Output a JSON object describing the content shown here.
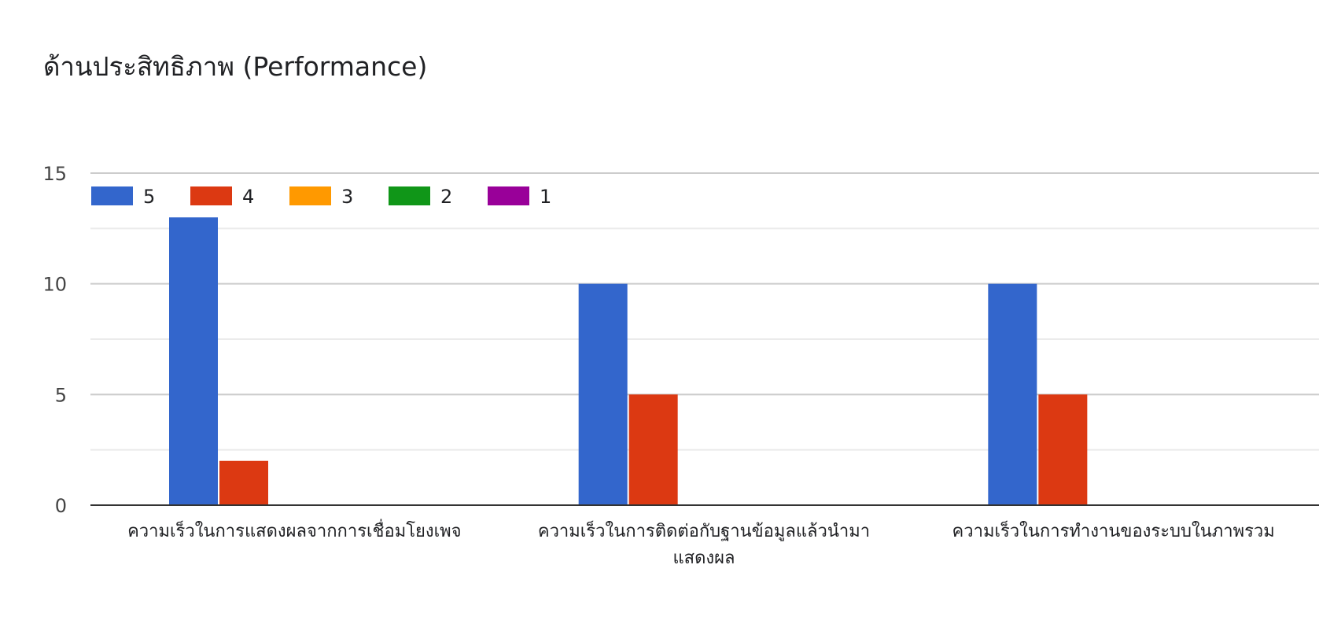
{
  "chart_data": {
    "type": "bar",
    "title": "ด้านประสิทธิภาพ (Performance)",
    "xlabel": "",
    "ylabel": "",
    "ylim": [
      0,
      15
    ],
    "yticks": [
      0,
      5,
      10,
      15
    ],
    "grid": true,
    "legend_position": "top-left",
    "categories": [
      [
        "ความเร็วในการแสดงผลจากการเชื่อมโยงเพจ"
      ],
      [
        "ความเร็วในการติดต่อกับฐานข้อมูลแล้วนำมา",
        "แสดงผล"
      ],
      [
        "ความเร็วในการทำงานของระบบในภาพรวม"
      ]
    ],
    "series": [
      {
        "name": "5",
        "color": "#3366cc",
        "values": [
          13,
          10,
          10
        ]
      },
      {
        "name": "4",
        "color": "#dc3912",
        "values": [
          2,
          5,
          5
        ]
      },
      {
        "name": "3",
        "color": "#ff9900",
        "values": [
          0,
          0,
          0
        ]
      },
      {
        "name": "2",
        "color": "#109618",
        "values": [
          0,
          0,
          0
        ]
      },
      {
        "name": "1",
        "color": "#990099",
        "values": [
          0,
          0,
          0
        ]
      }
    ]
  }
}
